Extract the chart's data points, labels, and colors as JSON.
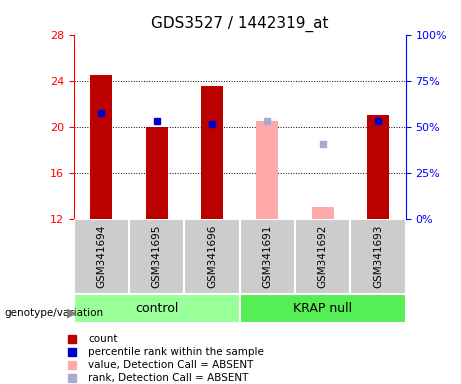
{
  "title": "GDS3527 / 1442319_at",
  "samples": [
    "GSM341694",
    "GSM341695",
    "GSM341696",
    "GSM341691",
    "GSM341692",
    "GSM341693"
  ],
  "groups": [
    "control",
    "control",
    "control",
    "KRAP null",
    "KRAP null",
    "KRAP null"
  ],
  "ylim_left": [
    12,
    28
  ],
  "ylim_right": [
    0,
    100
  ],
  "yticks_left": [
    12,
    16,
    20,
    24,
    28
  ],
  "yticks_right": [
    0,
    25,
    50,
    75,
    100
  ],
  "bar_values": [
    24.5,
    20.0,
    23.5,
    null,
    null,
    21.0
  ],
  "bar_values_absent": [
    null,
    null,
    null,
    20.5,
    13.0,
    null
  ],
  "rank_values": [
    21.2,
    20.5,
    20.2,
    null,
    null,
    20.5
  ],
  "rank_values_absent": [
    null,
    null,
    null,
    20.5,
    18.5,
    null
  ],
  "bar_color": "#bb0000",
  "bar_color_absent": "#ffaaaa",
  "rank_color": "#0000cc",
  "rank_color_absent": "#aaaacc",
  "bar_bottom": 12,
  "bar_width": 0.4,
  "group_colors": {
    "control": "#aaffaa",
    "KRAP null": "#55ff55"
  },
  "group_bg_color": "#cccccc",
  "legend_items": [
    {
      "label": "count",
      "color": "#bb0000",
      "marker": "s"
    },
    {
      "label": "percentile rank within the sample",
      "color": "#0000cc",
      "marker": "s"
    },
    {
      "label": "value, Detection Call = ABSENT",
      "color": "#ffaaaa",
      "marker": "s"
    },
    {
      "label": "rank, Detection Call = ABSENT",
      "color": "#aaaacc",
      "marker": "s"
    }
  ]
}
